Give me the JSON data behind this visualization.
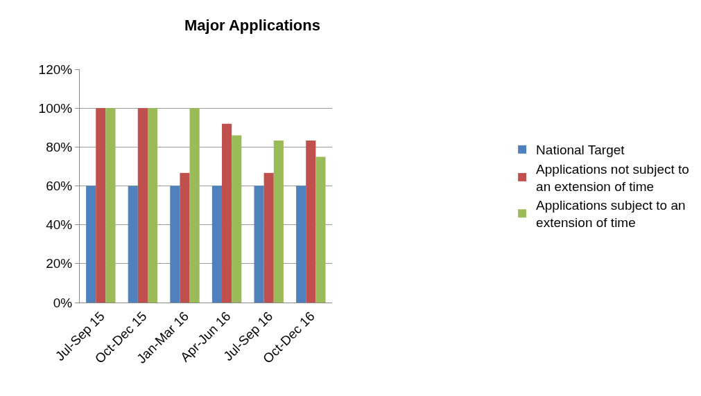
{
  "chart_data": {
    "type": "bar",
    "title": "Major Applications",
    "categories": [
      "Jul-Sep 15",
      "Oct-Dec 15",
      "Jan-Mar 16",
      "Apr-Jun 16",
      "Jul-Sep 16",
      "Oct-Dec 16"
    ],
    "series": [
      {
        "name": "National Target",
        "color": "#4f81bd",
        "values": [
          60,
          60,
          60,
          60,
          60,
          60
        ]
      },
      {
        "name": "Applications not subject to an extension of time",
        "color": "#c0504d",
        "values": [
          100,
          100,
          66.7,
          92,
          66.7,
          83.3
        ]
      },
      {
        "name": "Applications subject to an extension of time",
        "color": "#9bbb59",
        "values": [
          100,
          100,
          100,
          86,
          83.3,
          75
        ]
      }
    ],
    "ylim": [
      0,
      120
    ],
    "yticks": [
      {
        "value": 0,
        "label": "0%"
      },
      {
        "value": 20,
        "label": "20%"
      },
      {
        "value": 40,
        "label": "40%"
      },
      {
        "value": 60,
        "label": "60%"
      },
      {
        "value": 80,
        "label": "80%"
      },
      {
        "value": 100,
        "label": "100%"
      },
      {
        "value": 120,
        "label": "120%"
      }
    ],
    "grid": "y",
    "legend": "right"
  }
}
